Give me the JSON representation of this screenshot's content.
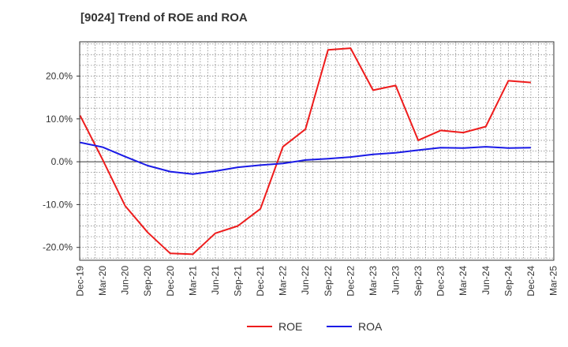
{
  "chart_data": {
    "type": "line",
    "title": "[9024]  Trend of ROE and ROA",
    "xlabel": "",
    "ylabel": "",
    "x": [
      "Dec-19",
      "Mar-20",
      "Jun-20",
      "Sep-20",
      "Dec-20",
      "Mar-21",
      "Jun-21",
      "Sep-21",
      "Dec-21",
      "Mar-22",
      "Jun-22",
      "Sep-22",
      "Dec-22",
      "Mar-23",
      "Jun-23",
      "Sep-23",
      "Dec-23",
      "Mar-24",
      "Jun-24",
      "Sep-24",
      "Dec-24",
      "Mar-25"
    ],
    "ylim": [
      -23,
      28
    ],
    "yticks": [
      -20,
      -10,
      0,
      10,
      20
    ],
    "ytick_labels": [
      "-20.0%",
      "-10.0%",
      "0.0%",
      "10.0%",
      "20.0%"
    ],
    "grid": true,
    "legend_position": "bottom-center",
    "series": [
      {
        "name": "ROE",
        "color": "#ee1c1c",
        "values": [
          10.8,
          0.5,
          -10.3,
          -16.5,
          -21.4,
          -21.6,
          -16.7,
          -15.0,
          -11.0,
          3.5,
          7.6,
          26.1,
          26.5,
          16.7,
          17.8,
          5.0,
          7.3,
          6.8,
          8.2,
          18.9,
          18.5,
          null
        ]
      },
      {
        "name": "ROA",
        "color": "#1a1ae6",
        "values": [
          4.5,
          3.4,
          1.2,
          -0.9,
          -2.3,
          -2.9,
          -2.2,
          -1.3,
          -0.8,
          -0.4,
          0.4,
          0.7,
          1.1,
          1.7,
          2.1,
          2.7,
          3.3,
          3.2,
          3.5,
          3.2,
          3.3,
          null
        ]
      }
    ]
  }
}
